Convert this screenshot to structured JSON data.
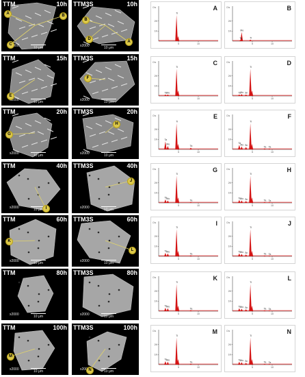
{
  "sem_panels": [
    {
      "id": "ttm-10h",
      "sample": "TTM",
      "time": "10h",
      "magnification": "x2000",
      "scale": "10 μm",
      "points": [
        "A",
        "B",
        "C"
      ]
    },
    {
      "id": "ttm3s-10h",
      "sample": "TTM3S",
      "time": "10h",
      "magnification": "x2000",
      "scale": "10 μm",
      "points": [
        "B",
        "D",
        "A"
      ]
    },
    {
      "id": "ttm-15h",
      "sample": "TTM",
      "time": "15h",
      "magnification": "x2000",
      "scale": "10 μm",
      "points": [
        "E"
      ]
    },
    {
      "id": "ttm3s-15h",
      "sample": "TTM3S",
      "time": "15h",
      "magnification": "x2000",
      "scale": "10 μm",
      "points": [
        "F"
      ]
    },
    {
      "id": "ttm-20h",
      "sample": "TTM",
      "time": "20h",
      "magnification": "x2000",
      "scale": "10 μm",
      "points": [
        "G"
      ]
    },
    {
      "id": "ttm3s-20h",
      "sample": "TTM3S",
      "time": "20h",
      "magnification": "x2000",
      "scale": "10 μm",
      "points": [
        "H"
      ]
    },
    {
      "id": "ttm-40h",
      "sample": "TTM",
      "time": "40h",
      "magnification": "x2000",
      "scale": "10 μm",
      "points": [
        "I"
      ]
    },
    {
      "id": "ttm3s-40h",
      "sample": "TTM3S",
      "time": "40h",
      "magnification": "x2000",
      "scale": "10 μm",
      "points": [
        "J"
      ]
    },
    {
      "id": "ttm-60h",
      "sample": "TTM",
      "time": "60h",
      "magnification": "x2000",
      "scale": "10 μm",
      "points": [
        "K"
      ]
    },
    {
      "id": "ttm3s-60h",
      "sample": "TTM3S",
      "time": "60h",
      "magnification": "x2000",
      "scale": "10 μm",
      "points": [
        "L"
      ]
    },
    {
      "id": "ttm-80h",
      "sample": "TTM",
      "time": "80h",
      "magnification": "x2000",
      "scale": "10 μm",
      "points": []
    },
    {
      "id": "ttm3s-80h",
      "sample": "TTM3S",
      "time": "80h",
      "magnification": "x2000",
      "scale": "10 μm",
      "points": []
    },
    {
      "id": "ttm-100h",
      "sample": "TTM",
      "time": "100h",
      "magnification": "x2000",
      "scale": "10 μm",
      "points": [
        "M"
      ]
    },
    {
      "id": "ttm3s-100h",
      "sample": "TTM3S",
      "time": "100h",
      "magnification": "x2000",
      "scale": "10 μm",
      "points": [
        "N"
      ]
    }
  ],
  "chart_data": {
    "type": "bar",
    "xlim": [
      0,
      15
    ],
    "x_ticks": [
      "5",
      "10"
    ],
    "y_ticks": [
      "1K",
      "2K"
    ],
    "y_unit": "Cts",
    "colors": {
      "spectrum": "#d41414",
      "axis": "#2a2a2a",
      "sem_background": "#000000",
      "marker_fill": "#dcc84a",
      "marker_stroke": "#b8a21a"
    },
    "spectra": [
      {
        "label": "A",
        "peaks": [
          {
            "x": 4.5,
            "h": 2.6,
            "label": "Ti"
          },
          {
            "x": 4.9,
            "h": 0.5,
            "label": ""
          }
        ]
      },
      {
        "label": "B",
        "peaks": [
          {
            "x": 2.3,
            "h": 0.9,
            "label": "Mo"
          },
          {
            "x": 2.0,
            "h": 0.12,
            "label": "Ta"
          },
          {
            "x": 4.5,
            "h": 0.15,
            "label": "Ti"
          }
        ]
      },
      {
        "label": "C",
        "peaks": [
          {
            "x": 1.7,
            "h": 0.15,
            "label": "Ta"
          },
          {
            "x": 2.3,
            "h": 0.15,
            "label": "Mo"
          },
          {
            "x": 4.5,
            "h": 2.7,
            "label": "Ti"
          },
          {
            "x": 4.9,
            "h": 0.55,
            "label": ""
          }
        ]
      },
      {
        "label": "D",
        "peaks": [
          {
            "x": 1.7,
            "h": 0.15,
            "label": "Ta"
          },
          {
            "x": 2.3,
            "h": 0.2,
            "label": "Mo"
          },
          {
            "x": 3.4,
            "h": 0.15,
            "label": "Sn"
          },
          {
            "x": 4.5,
            "h": 2.7,
            "label": "Ti"
          },
          {
            "x": 4.9,
            "h": 0.55,
            "label": ""
          }
        ]
      },
      {
        "label": "E",
        "peaks": [
          {
            "x": 1.7,
            "h": 0.8,
            "label": "Ta"
          },
          {
            "x": 2.3,
            "h": 0.35,
            "label": "Mo"
          },
          {
            "x": 4.5,
            "h": 2.6,
            "label": "Ti"
          },
          {
            "x": 4.9,
            "h": 0.55,
            "label": ""
          },
          {
            "x": 8.1,
            "h": 0.18,
            "label": "Ta"
          }
        ]
      },
      {
        "label": "F",
        "peaks": [
          {
            "x": 1.7,
            "h": 0.45,
            "label": "Ta"
          },
          {
            "x": 2.3,
            "h": 0.3,
            "label": "Mo"
          },
          {
            "x": 3.4,
            "h": 0.25,
            "label": "Sn"
          },
          {
            "x": 4.5,
            "h": 2.6,
            "label": "Ti"
          },
          {
            "x": 4.9,
            "h": 0.55,
            "label": ""
          },
          {
            "x": 8.1,
            "h": 0.1,
            "label": "Ta"
          },
          {
            "x": 9.3,
            "h": 0.08,
            "label": "Ta"
          }
        ]
      },
      {
        "label": "G",
        "peaks": [
          {
            "x": 1.7,
            "h": 0.35,
            "label": "Ta"
          },
          {
            "x": 2.3,
            "h": 0.25,
            "label": "Mo"
          },
          {
            "x": 4.5,
            "h": 2.7,
            "label": "Ti"
          },
          {
            "x": 4.9,
            "h": 0.55,
            "label": ""
          },
          {
            "x": 8.1,
            "h": 0.08,
            "label": "Ta"
          }
        ]
      },
      {
        "label": "H",
        "peaks": [
          {
            "x": 1.7,
            "h": 0.3,
            "label": "Ta"
          },
          {
            "x": 2.3,
            "h": 0.25,
            "label": "Mo"
          },
          {
            "x": 3.4,
            "h": 0.2,
            "label": "Sn"
          },
          {
            "x": 4.5,
            "h": 2.7,
            "label": "Ti"
          },
          {
            "x": 4.9,
            "h": 0.55,
            "label": ""
          },
          {
            "x": 8.1,
            "h": 0.08,
            "label": "Ta"
          },
          {
            "x": 9.3,
            "h": 0.06,
            "label": "Ta"
          }
        ]
      },
      {
        "label": "I",
        "peaks": [
          {
            "x": 1.7,
            "h": 0.35,
            "label": "Ta"
          },
          {
            "x": 2.3,
            "h": 0.3,
            "label": "Mo"
          },
          {
            "x": 4.5,
            "h": 2.7,
            "label": "Ti"
          },
          {
            "x": 4.9,
            "h": 0.55,
            "label": ""
          },
          {
            "x": 8.1,
            "h": 0.1,
            "label": "Ta"
          }
        ]
      },
      {
        "label": "J",
        "peaks": [
          {
            "x": 1.7,
            "h": 0.3,
            "label": "Ta"
          },
          {
            "x": 2.3,
            "h": 0.25,
            "label": "Mo"
          },
          {
            "x": 3.4,
            "h": 0.2,
            "label": "Sn"
          },
          {
            "x": 4.5,
            "h": 2.7,
            "label": "Ti"
          },
          {
            "x": 4.9,
            "h": 0.55,
            "label": ""
          },
          {
            "x": 8.1,
            "h": 0.08,
            "label": "Ta"
          },
          {
            "x": 9.3,
            "h": 0.06,
            "label": "Ta"
          }
        ]
      },
      {
        "label": "K",
        "peaks": [
          {
            "x": 1.7,
            "h": 0.35,
            "label": "Ta"
          },
          {
            "x": 2.3,
            "h": 0.3,
            "label": "Mo"
          },
          {
            "x": 4.5,
            "h": 2.7,
            "label": "Ti"
          },
          {
            "x": 4.9,
            "h": 0.55,
            "label": ""
          },
          {
            "x": 8.1,
            "h": 0.1,
            "label": "Ta"
          }
        ]
      },
      {
        "label": "L",
        "peaks": [
          {
            "x": 1.7,
            "h": 0.3,
            "label": "Ta"
          },
          {
            "x": 2.3,
            "h": 0.25,
            "label": "Mo"
          },
          {
            "x": 3.4,
            "h": 0.2,
            "label": "Sn"
          },
          {
            "x": 4.5,
            "h": 2.7,
            "label": "Ti"
          },
          {
            "x": 4.9,
            "h": 0.55,
            "label": ""
          },
          {
            "x": 8.1,
            "h": 0.08,
            "label": "Ta"
          },
          {
            "x": 9.3,
            "h": 0.06,
            "label": "Ta"
          }
        ]
      },
      {
        "label": "M",
        "peaks": [
          {
            "x": 1.7,
            "h": 0.35,
            "label": "Ta"
          },
          {
            "x": 2.3,
            "h": 0.3,
            "label": "Mo"
          },
          {
            "x": 4.5,
            "h": 2.7,
            "label": "Ti"
          },
          {
            "x": 4.9,
            "h": 0.55,
            "label": ""
          },
          {
            "x": 8.1,
            "h": 0.1,
            "label": "Ta"
          }
        ]
      },
      {
        "label": "N",
        "peaks": [
          {
            "x": 1.7,
            "h": 0.3,
            "label": "Ta"
          },
          {
            "x": 2.3,
            "h": 0.25,
            "label": "Mo"
          },
          {
            "x": 3.4,
            "h": 0.2,
            "label": "Sn"
          },
          {
            "x": 4.5,
            "h": 2.7,
            "label": "Ti"
          },
          {
            "x": 4.9,
            "h": 0.55,
            "label": ""
          },
          {
            "x": 8.1,
            "h": 0.08,
            "label": "Ta"
          },
          {
            "x": 9.3,
            "h": 0.06,
            "label": "Ta"
          }
        ]
      }
    ]
  }
}
